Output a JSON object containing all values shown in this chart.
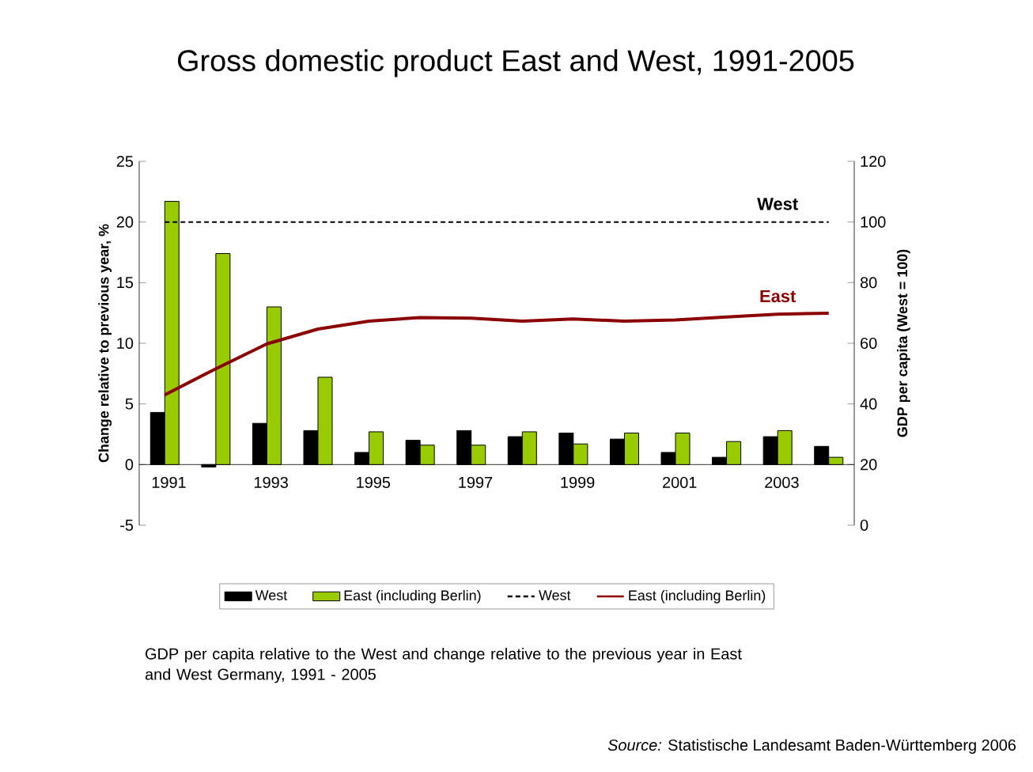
{
  "chart_data": {
    "type": "bar",
    "title": "Gross domestic product East and West, 1991-2005",
    "ylabel": "Change relative to previous year, %",
    "y2label": "GDP per capita (West = 100)",
    "categories": [
      "1991",
      null,
      "1993",
      null,
      "1995",
      null,
      "1997",
      null,
      "1999",
      null,
      "2001",
      null,
      "2003",
      null
    ],
    "series": [
      {
        "name": "West",
        "color": "#000000",
        "values": [
          4.3,
          -0.2,
          3.4,
          2.8,
          1.0,
          2.0,
          2.8,
          2.3,
          2.6,
          2.1,
          1.0,
          0.6,
          2.3,
          1.5
        ]
      },
      {
        "name": "East (including Berlin)",
        "color": "#99cc00",
        "values": [
          21.7,
          17.4,
          13.0,
          7.2,
          2.7,
          1.6,
          1.6,
          2.7,
          1.7,
          2.6,
          2.6,
          1.9,
          2.8,
          0.6
        ]
      },
      {
        "name": "West",
        "type": "line",
        "axis": "y2",
        "color": "#000000",
        "line_style": "dashed",
        "values": [
          100,
          100,
          100,
          100,
          100,
          100,
          100,
          100,
          100,
          100,
          100,
          100,
          100,
          100
        ]
      },
      {
        "name": "East (including Berlin)",
        "type": "line",
        "axis": "y2",
        "color": "#8b0000",
        "line_style": "solid",
        "values": [
          43,
          51.6,
          59.8,
          64.7,
          67.3,
          68.5,
          68.3,
          67.3,
          68,
          67.3,
          67.7,
          68.7,
          69.6,
          69.9
        ]
      }
    ],
    "ylim": [
      -5,
      25
    ],
    "yticks": [
      -5,
      0,
      5,
      10,
      15,
      20,
      25
    ],
    "y2lim": [
      0,
      120
    ],
    "y2ticks": [
      0,
      20,
      40,
      60,
      80,
      100,
      120
    ],
    "legend": "bottom",
    "grid": false,
    "marker": "none",
    "annotations": [
      "West",
      "East",
      "GDP per capita relative to the West and change relative to the previous year in East and West Germany, 1991 - 2005",
      "*Source:* Statistische Landesamt Baden-Württemberg 2006"
    ]
  }
}
